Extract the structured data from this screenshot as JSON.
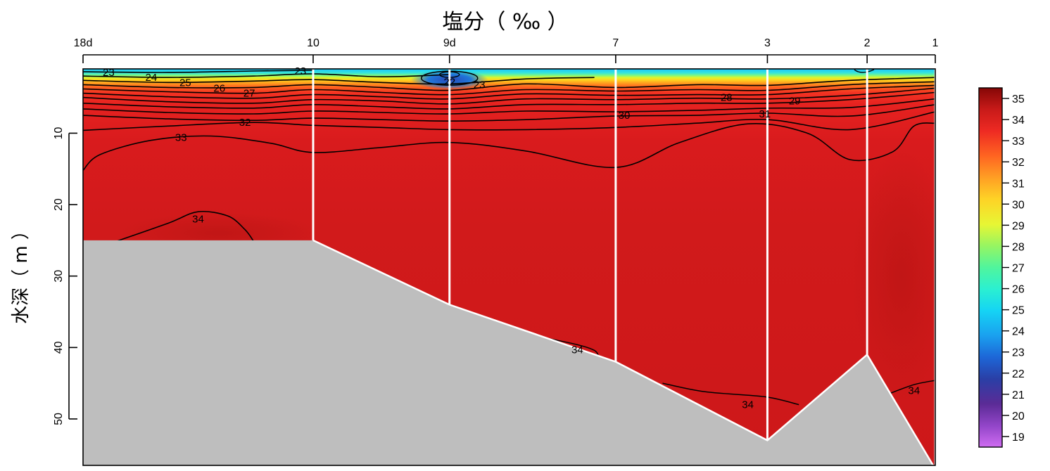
{
  "chart_data": {
    "type": "heatmap",
    "title": "塩分（ ‰ ）",
    "xlabel": "",
    "ylabel": "水深（ m ）",
    "stations": [
      {
        "label": "18d",
        "bottom_depth": 25
      },
      {
        "label": "10",
        "bottom_depth": 25
      },
      {
        "label": "9d",
        "bottom_depth": 34
      },
      {
        "label": "7",
        "bottom_depth": 42
      },
      {
        "label": "3",
        "bottom_depth": 53
      },
      {
        "label": "2",
        "bottom_depth": 41
      },
      {
        "label": "1",
        "bottom_depth": 57
      }
    ],
    "y_ticks": [
      10,
      20,
      30,
      40,
      50
    ],
    "ylim": [
      56.5,
      1
    ],
    "colorbar": {
      "min": 19,
      "max": 35,
      "ticks": [
        35,
        34,
        33,
        32,
        31,
        30,
        29,
        28,
        27,
        26,
        25,
        24,
        23,
        22,
        21,
        20,
        19
      ]
    },
    "contour_labels": [
      {
        "text": "23",
        "x": 0.03,
        "depth": 1.5
      },
      {
        "text": "24",
        "x": 0.08,
        "depth": 2.2
      },
      {
        "text": "25",
        "x": 0.12,
        "depth": 2.9
      },
      {
        "text": "26",
        "x": 0.16,
        "depth": 3.7
      },
      {
        "text": "27",
        "x": 0.195,
        "depth": 4.4
      },
      {
        "text": "23",
        "x": 0.255,
        "depth": 1.3
      },
      {
        "text": "22",
        "x": 0.43,
        "depth": 2.8
      },
      {
        "text": "23",
        "x": 0.465,
        "depth": 3.2
      },
      {
        "text": "28",
        "x": 0.755,
        "depth": 5.0
      },
      {
        "text": "29",
        "x": 0.835,
        "depth": 5.5
      },
      {
        "text": "30",
        "x": 0.635,
        "depth": 7.5
      },
      {
        "text": "31",
        "x": 0.8,
        "depth": 7.3
      },
      {
        "text": "32",
        "x": 0.19,
        "depth": 8.5
      },
      {
        "text": "33",
        "x": 0.115,
        "depth": 10.6
      },
      {
        "text": "34",
        "x": 0.135,
        "depth": 22.0
      },
      {
        "text": "34",
        "x": 0.58,
        "depth": 40.3
      },
      {
        "text": "34",
        "x": 0.78,
        "depth": 48.0
      },
      {
        "text": "34",
        "x": 0.975,
        "depth": 46.0
      }
    ]
  }
}
